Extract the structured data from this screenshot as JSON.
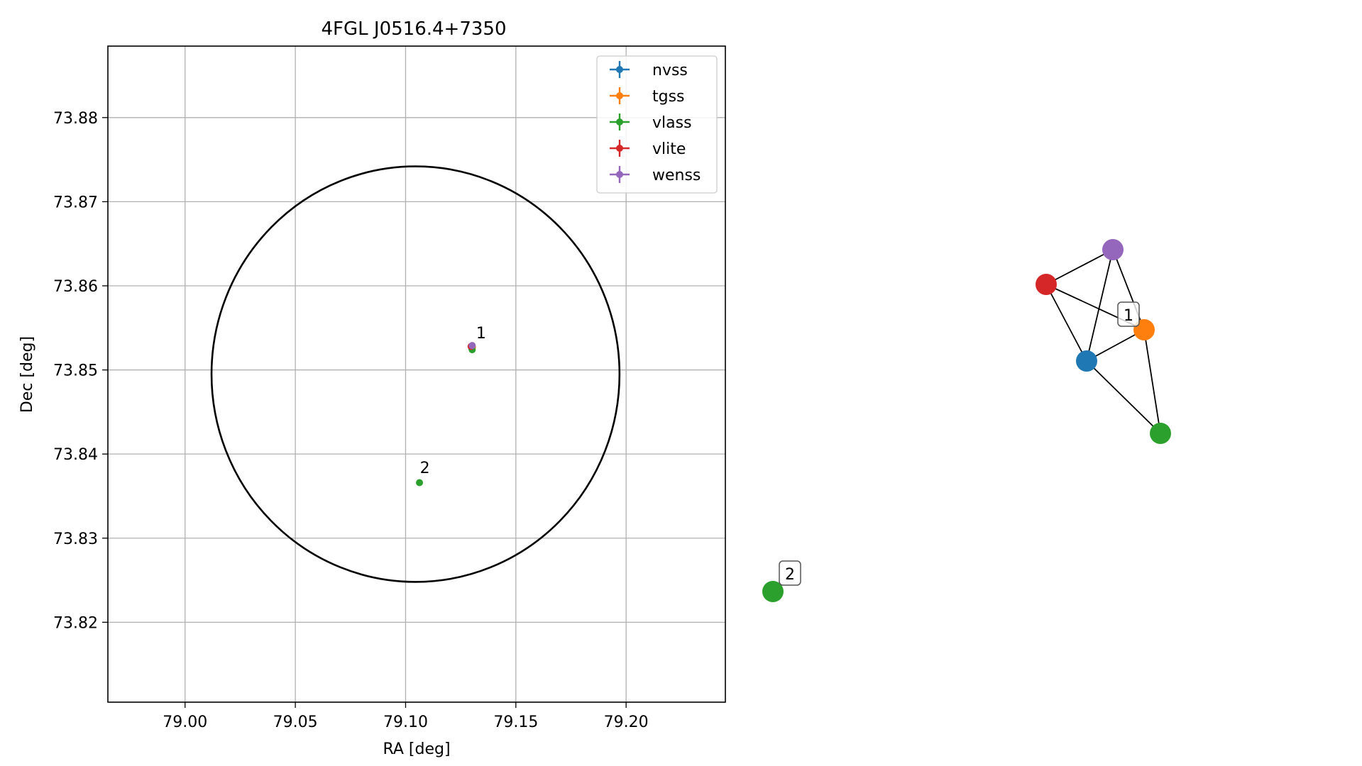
{
  "chart_data": [
    {
      "type": "scatter",
      "title": "4FGL J0516.4+7350",
      "xlabel": "RA [deg]",
      "ylabel": "Dec [deg]",
      "xlim": [
        78.965,
        79.245
      ],
      "ylim": [
        73.8105,
        73.8885
      ],
      "xticks": [
        79.0,
        79.05,
        79.1,
        79.15,
        79.2
      ],
      "xtick_labels": [
        "79.00",
        "79.05",
        "79.10",
        "79.15",
        "79.20"
      ],
      "yticks": [
        73.82,
        73.83,
        73.84,
        73.85,
        73.86,
        73.87,
        73.88
      ],
      "ytick_labels": [
        "73.82",
        "73.83",
        "73.84",
        "73.85",
        "73.86",
        "73.87",
        "73.88"
      ],
      "grid": true,
      "legend_position": "top-right",
      "error_ellipse": {
        "center": [
          79.1045,
          73.8495
        ],
        "ra_semi_axis": 0.0925,
        "dec_semi_axis": 0.0247
      },
      "series": [
        {
          "name": "nvss",
          "color": "#1f77b4",
          "points": [
            [
              79.13,
              73.8526
            ]
          ]
        },
        {
          "name": "tgss",
          "color": "#ff7f0e",
          "points": [
            [
              79.1303,
              73.8527
            ]
          ]
        },
        {
          "name": "vlass",
          "color": "#2ca02c",
          "points": [
            [
              79.1302,
              73.8524
            ],
            [
              79.1063,
              73.8366
            ]
          ]
        },
        {
          "name": "vlite",
          "color": "#d62728",
          "points": [
            [
              79.1297,
              73.8528
            ]
          ]
        },
        {
          "name": "wenss",
          "color": "#9467bd",
          "points": [
            [
              79.1302,
              73.8529
            ]
          ]
        }
      ],
      "annotations": [
        {
          "label": "1",
          "x": 79.132,
          "y": 73.854
        },
        {
          "label": "2",
          "x": 79.1065,
          "y": 73.838
        }
      ]
    },
    {
      "type": "network",
      "nodes": [
        {
          "id": "wenss",
          "color": "#9467bd"
        },
        {
          "id": "vlite",
          "color": "#d62728"
        },
        {
          "id": "tgss",
          "color": "#ff7f0e"
        },
        {
          "id": "nvss",
          "color": "#1f77b4"
        },
        {
          "id": "vlass-1",
          "color": "#2ca02c"
        },
        {
          "id": "vlass-2",
          "color": "#2ca02c"
        }
      ],
      "edges": [
        [
          "vlite",
          "wenss"
        ],
        [
          "vlite",
          "tgss"
        ],
        [
          "vlite",
          "nvss"
        ],
        [
          "wenss",
          "nvss"
        ],
        [
          "wenss",
          "tgss"
        ],
        [
          "nvss",
          "tgss"
        ],
        [
          "nvss",
          "vlass-1"
        ],
        [
          "tgss",
          "vlass-1"
        ]
      ],
      "groups": [
        {
          "label": "1",
          "members": [
            "wenss",
            "vlite",
            "tgss",
            "nvss",
            "vlass-1"
          ]
        },
        {
          "label": "2",
          "members": [
            "vlass-2"
          ]
        }
      ]
    }
  ]
}
